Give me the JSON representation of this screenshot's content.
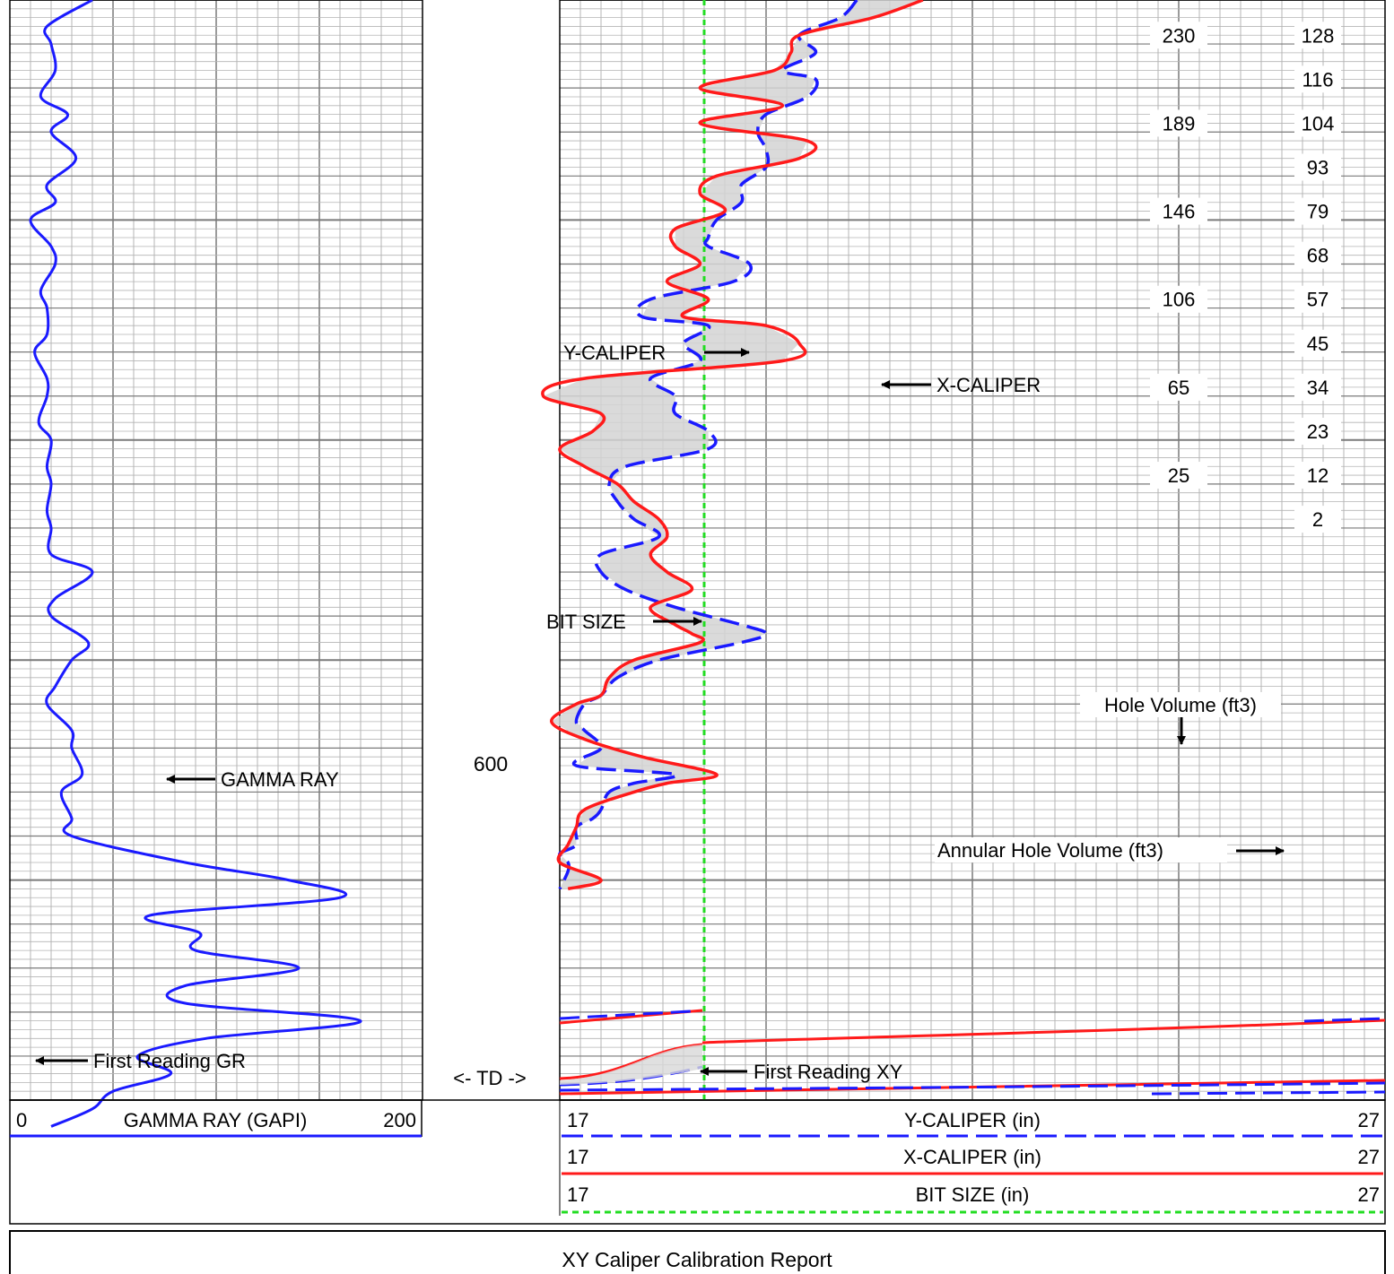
{
  "report_title": "XY Caliper Calibration Report",
  "depth_label": "600",
  "td_label": "<- TD ->",
  "colors": {
    "gamma": "#1a1aff",
    "y_caliper": "#1a1aff",
    "x_caliper": "#ff1a1a",
    "bit_size": "#22dd22",
    "grid_major": "#7a7a7a",
    "grid_minor": "#b4b4b4"
  },
  "annotations": {
    "gamma_ray": "GAMMA RAY",
    "first_reading_gr": "First Reading GR",
    "y_caliper": "Y-CALIPER",
    "x_caliper": "X-CALIPER",
    "bit_size": "BIT SIZE",
    "first_reading_xy": "First Reading XY",
    "hole_volume": "Hole Volume (ft3)",
    "annular_volume": "Annular Hole Volume (ft3)"
  },
  "chart_data": {
    "type": "line",
    "depth_range": [
      500,
      625
    ],
    "td_depth": 621,
    "tracks": [
      {
        "name": "gamma-track",
        "series": [
          {
            "name": "GAMMA RAY (GAPI)",
            "scale": [
              0,
              200
            ],
            "style": "solid",
            "points": [
              [
                500,
                40
              ],
              [
                503,
                18
              ],
              [
                505,
                20
              ],
              [
                508,
                22
              ],
              [
                511,
                15
              ],
              [
                513,
                28
              ],
              [
                515,
                20
              ],
              [
                518,
                32
              ],
              [
                521,
                18
              ],
              [
                523,
                22
              ],
              [
                525,
                10
              ],
              [
                528,
                20
              ],
              [
                530,
                22
              ],
              [
                533,
                15
              ],
              [
                535,
                18
              ],
              [
                538,
                18
              ],
              [
                540,
                12
              ],
              [
                543,
                18
              ],
              [
                545,
                18
              ],
              [
                548,
                14
              ],
              [
                550,
                20
              ],
              [
                553,
                18
              ],
              [
                555,
                20
              ],
              [
                558,
                18
              ],
              [
                560,
                20
              ],
              [
                563,
                20
              ],
              [
                565,
                40
              ],
              [
                568,
                22
              ],
              [
                570,
                20
              ],
              [
                573,
                38
              ],
              [
                575,
                30
              ],
              [
                578,
                22
              ],
              [
                580,
                18
              ],
              [
                583,
                30
              ],
              [
                585,
                30
              ],
              [
                588,
                35
              ],
              [
                590,
                25
              ],
              [
                593,
                30
              ],
              [
                595,
                30
              ],
              [
                598,
                85
              ],
              [
                600,
                135
              ],
              [
                602,
                160
              ],
              [
                604,
                68
              ],
              [
                606,
                92
              ],
              [
                608,
                90
              ],
              [
                610,
                140
              ],
              [
                612,
                85
              ],
              [
                614,
                85
              ],
              [
                616,
                170
              ],
              [
                618,
                95
              ],
              [
                620,
                62
              ],
              [
                622,
                78
              ],
              [
                624,
                50
              ],
              [
                626,
                40
              ],
              [
                628,
                20
              ]
            ]
          }
        ]
      },
      {
        "name": "caliper-track",
        "series": [
          {
            "name": "Y-CALIPER (in)",
            "scale": [
              17,
              27
            ],
            "style": "dashed",
            "points": [
              [
                500,
                20.6
              ],
              [
                502,
                20.4
              ],
              [
                504,
                19.9
              ],
              [
                506,
                20.1
              ],
              [
                508,
                19.7
              ],
              [
                509,
                20.1
              ],
              [
                511,
                20.0
              ],
              [
                513,
                19.5
              ],
              [
                515,
                19.4
              ],
              [
                517,
                19.5
              ],
              [
                519,
                19.5
              ],
              [
                521,
                19.2
              ],
              [
                523,
                19.2
              ],
              [
                525,
                18.9
              ],
              [
                527,
                18.8
              ],
              [
                528,
                18.8
              ],
              [
                530,
                19.3
              ],
              [
                532,
                19.1
              ],
              [
                534,
                18.1
              ],
              [
                536,
                18.0
              ],
              [
                537,
                18.8
              ],
              [
                539,
                18.5
              ],
              [
                541,
                18.7
              ],
              [
                543,
                18.1
              ],
              [
                545,
                18.4
              ],
              [
                547,
                18.4
              ],
              [
                549,
                18.8
              ],
              [
                551,
                18.8
              ],
              [
                553,
                17.8
              ],
              [
                555,
                17.6
              ],
              [
                557,
                17.7
              ],
              [
                559,
                17.9
              ],
              [
                561,
                18.2
              ],
              [
                563,
                17.5
              ],
              [
                565,
                17.5
              ],
              [
                567,
                17.8
              ],
              [
                569,
                18.4
              ],
              [
                571,
                19.2
              ],
              [
                572,
                19.5
              ],
              [
                573,
                19.2
              ],
              [
                575,
                18.2
              ],
              [
                577,
                17.7
              ],
              [
                579,
                17.5
              ],
              [
                580,
                17.3
              ],
              [
                582,
                17.2
              ],
              [
                583,
                17.3
              ],
              [
                585,
                17.5
              ],
              [
                587,
                17.2
              ],
              [
                588,
                18.4
              ],
              [
                589,
                17.9
              ],
              [
                590,
                17.6
              ],
              [
                592,
                17.5
              ],
              [
                593,
                17.4
              ],
              [
                594,
                17.2
              ],
              [
                596,
                17.2
              ],
              [
                597,
                17.0
              ],
              [
                598,
                17.1
              ],
              [
                599,
                17.1
              ],
              [
                601,
                17.0
              ]
            ]
          },
          {
            "name": "X-CALIPER (in)",
            "scale": [
              17,
              27
            ],
            "style": "solid",
            "points": [
              [
                500,
                21.4
              ],
              [
                502,
                20.8
              ],
              [
                504,
                19.9
              ],
              [
                506,
                19.8
              ],
              [
                508,
                19.6
              ],
              [
                510,
                18.7
              ],
              [
                512,
                19.7
              ],
              [
                514,
                18.7
              ],
              [
                516,
                20.0
              ],
              [
                518,
                19.9
              ],
              [
                520,
                18.9
              ],
              [
                522,
                18.7
              ],
              [
                524,
                19.0
              ],
              [
                526,
                18.4
              ],
              [
                528,
                18.4
              ],
              [
                530,
                18.7
              ],
              [
                532,
                18.3
              ],
              [
                534,
                18.8
              ],
              [
                536,
                18.5
              ],
              [
                537,
                19.5
              ],
              [
                539,
                19.9
              ],
              [
                541,
                19.7
              ],
              [
                543,
                17.3
              ],
              [
                545,
                16.8
              ],
              [
                547,
                17.5
              ],
              [
                549,
                17.4
              ],
              [
                551,
                17.0
              ],
              [
                553,
                17.3
              ],
              [
                555,
                17.7
              ],
              [
                557,
                17.9
              ],
              [
                559,
                18.2
              ],
              [
                561,
                18.3
              ],
              [
                563,
                18.1
              ],
              [
                565,
                18.3
              ],
              [
                567,
                18.6
              ],
              [
                569,
                18.1
              ],
              [
                571,
                18.4
              ],
              [
                572,
                18.6
              ],
              [
                573,
                18.7
              ],
              [
                575,
                17.9
              ],
              [
                577,
                17.6
              ],
              [
                579,
                17.5
              ],
              [
                580,
                17.2
              ],
              [
                582,
                16.9
              ],
              [
                584,
                17.3
              ],
              [
                586,
                18.0
              ],
              [
                588,
                18.9
              ],
              [
                589,
                18.3
              ],
              [
                590,
                17.9
              ],
              [
                592,
                17.3
              ],
              [
                594,
                17.2
              ],
              [
                596,
                17.1
              ],
              [
                598,
                17.0
              ],
              [
                600,
                17.5
              ],
              [
                601,
                17.1
              ]
            ]
          },
          {
            "name": "BIT SIZE (in)",
            "scale": [
              17,
              27
            ],
            "style": "dotted",
            "points": [
              [
                500,
                18.75
              ],
              [
                625,
                18.75
              ]
            ]
          }
        ]
      }
    ],
    "volume_ticks": {
      "hole_volume": [
        230,
        189,
        146,
        106,
        65,
        25
      ],
      "annular_volume": [
        128,
        116,
        104,
        93,
        79,
        68,
        57,
        45,
        34,
        23,
        12,
        2
      ]
    },
    "legend": [
      {
        "name": "GAMMA RAY (GAPI)",
        "min": "0",
        "max": "200"
      },
      {
        "name": "Y-CALIPER (in)",
        "min": "17",
        "max": "27"
      },
      {
        "name": "X-CALIPER (in)",
        "min": "17",
        "max": "27"
      },
      {
        "name": "BIT SIZE (in)",
        "min": "17",
        "max": "27"
      }
    ]
  }
}
